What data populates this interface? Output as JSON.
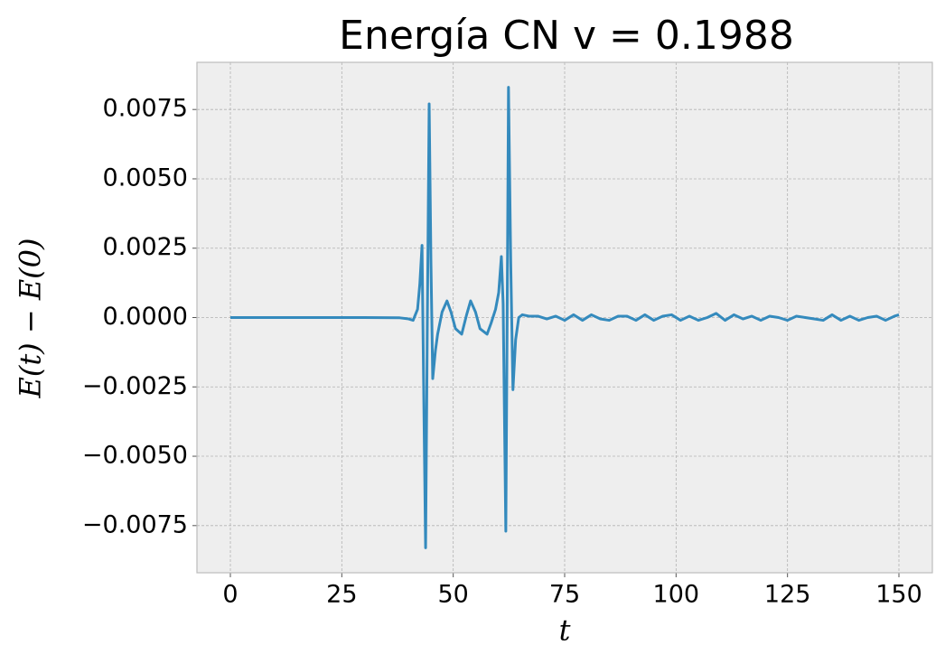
{
  "chart_data": {
    "type": "line",
    "title": "Energía CN v = 0.1988",
    "x_label": "t",
    "y_label": "E(t) − E(0)",
    "grid": true,
    "xlim": [
      -7.5,
      157.5
    ],
    "ylim": [
      -0.0092,
      0.0092
    ],
    "xticks": [
      0,
      25,
      50,
      75,
      100,
      125,
      150
    ],
    "yticks": [
      {
        "value": -0.0075,
        "label": "−0.0075"
      },
      {
        "value": -0.005,
        "label": "−0.0050"
      },
      {
        "value": -0.0025,
        "label": "−0.0025"
      },
      {
        "value": 0,
        "label": "0.0000"
      },
      {
        "value": 0.0025,
        "label": "0.0025"
      },
      {
        "value": 0.005,
        "label": "0.0050"
      },
      {
        "value": 0.0075,
        "label": "0.0075"
      }
    ],
    "x": [
      0,
      10,
      20,
      30,
      38,
      40,
      41,
      42,
      42.5,
      43,
      43.4,
      43.8,
      44.2,
      44.6,
      45,
      45.4,
      46,
      46.5,
      47.5,
      48.6,
      49.5,
      50.5,
      51.9,
      53,
      53.9,
      55,
      56,
      57.6,
      58.5,
      59.5,
      60.2,
      60.8,
      61.2,
      61.8,
      62.1,
      62.4,
      62.9,
      63.4,
      64,
      64.7,
      65.5,
      67,
      69,
      71,
      73,
      75,
      77,
      79,
      81,
      83,
      85,
      87,
      89,
      91,
      93,
      95,
      97,
      99,
      101,
      103,
      105,
      107,
      109,
      111,
      113,
      115,
      117,
      119,
      121,
      123,
      125,
      127,
      129,
      131,
      133,
      135,
      137,
      139,
      141,
      143,
      145,
      147,
      149,
      150
    ],
    "series": [
      {
        "color": "#348abd",
        "values": [
          0,
          0,
          0,
          0,
          -1e-05,
          -5e-05,
          -0.0001,
          0.0003,
          0.0012,
          0.0026,
          -0.003,
          -0.0083,
          0.0,
          0.0077,
          0.002,
          -0.0022,
          -0.0012,
          -0.0006,
          0.0002,
          0.0006,
          0.0002,
          -0.0004,
          -0.0006,
          0.0001,
          0.0006,
          0.0002,
          -0.0004,
          -0.0006,
          -0.0002,
          0.0003,
          0.0009,
          0.0022,
          0.0005,
          -0.0077,
          0.0,
          0.0083,
          0.002,
          -0.0026,
          -0.0008,
          0.0,
          0.0001,
          5e-05,
          5e-05,
          -5e-05,
          5e-05,
          -0.0001,
          0.0001,
          -0.0001,
          0.0001,
          -5e-05,
          -0.0001,
          5e-05,
          5e-05,
          -0.0001,
          0.0001,
          -0.0001,
          5e-05,
          0.0001,
          -0.0001,
          5e-05,
          -0.0001,
          0.0,
          0.00015,
          -0.0001,
          0.0001,
          -5e-05,
          5e-05,
          -0.0001,
          5e-05,
          0.0,
          -0.0001,
          5e-05,
          0.0,
          -5e-05,
          -0.0001,
          0.0001,
          -0.0001,
          5e-05,
          -0.0001,
          0.0,
          5e-05,
          -0.0001,
          5e-05,
          0.0001
        ]
      }
    ]
  }
}
